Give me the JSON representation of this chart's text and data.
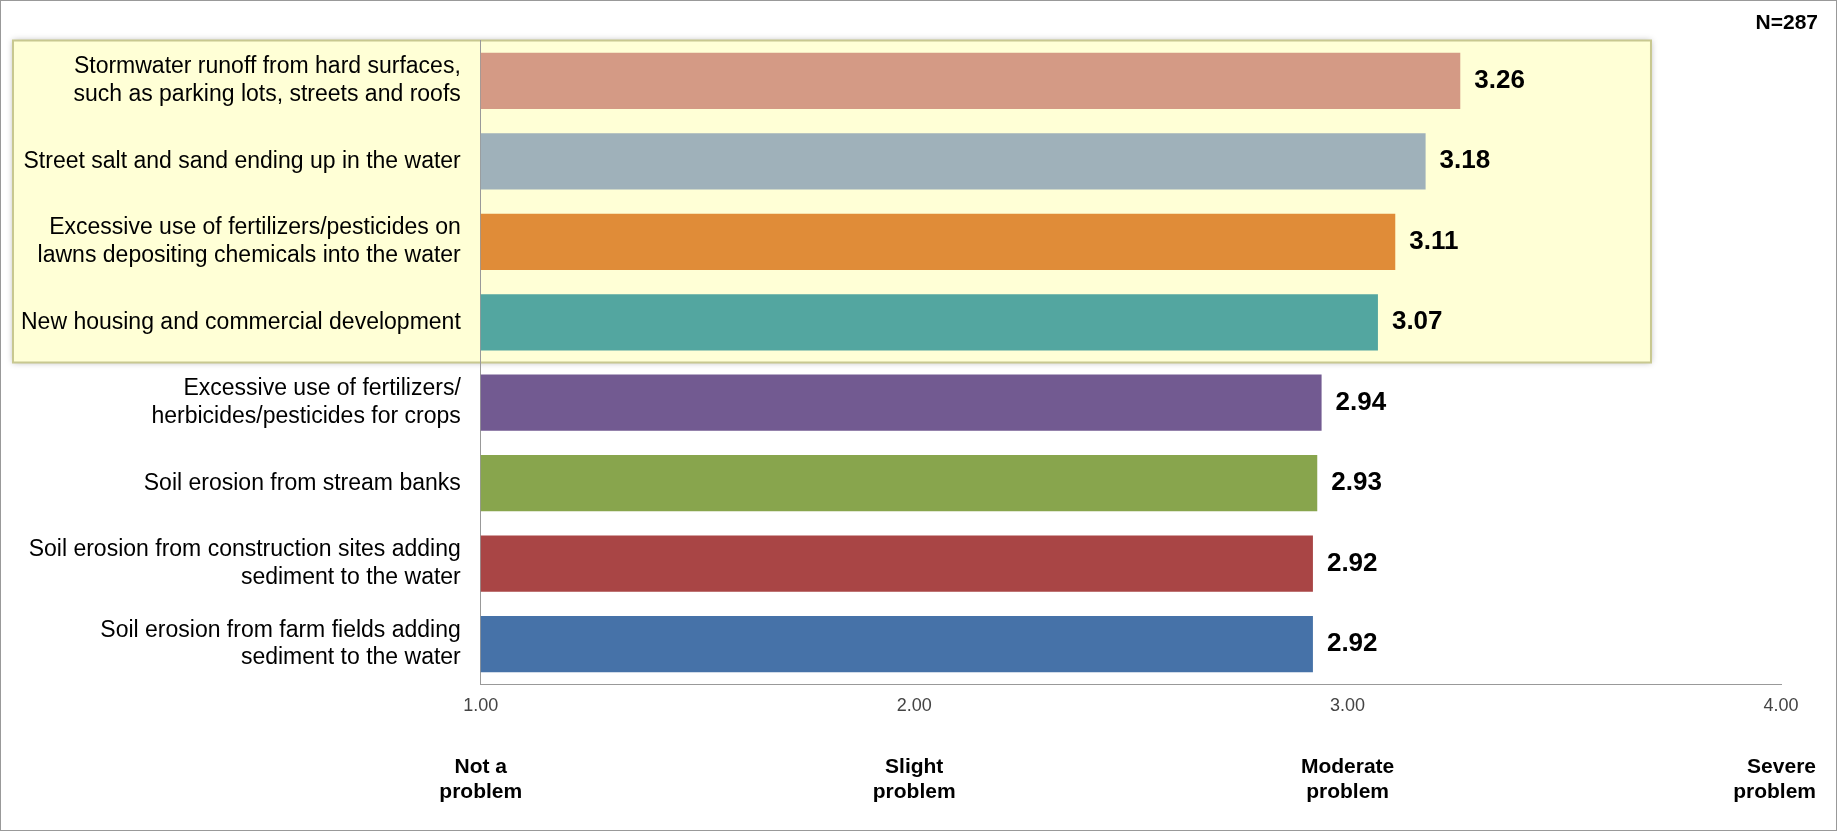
{
  "chart_data": {
    "type": "bar",
    "orientation": "horizontal",
    "categories": [
      "Stormwater runoff from hard surfaces, such as parking lots, streets and roofs",
      "Street salt and sand ending up in the water",
      "Excessive use of fertilizers/pesticides on lawns depositing chemicals into the water",
      "New housing and commercial development",
      "Excessive use of fertilizers/ herbicides/pesticides for crops",
      "Soil erosion from stream banks",
      "Soil erosion from construction sites adding sediment to the water",
      "Soil erosion from farm fields adding sediment to the water"
    ],
    "values": [
      3.26,
      3.18,
      3.11,
      3.07,
      2.94,
      2.93,
      2.92,
      2.92
    ],
    "colors": [
      "#d49a85",
      "#9fb1ba",
      "#e08c38",
      "#53a6a0",
      "#725a91",
      "#88a54d",
      "#a94545",
      "#4672a8"
    ],
    "xlim": [
      1,
      4
    ],
    "xticks": [
      {
        "value": 1,
        "label": "1.00"
      },
      {
        "value": 2,
        "label": "2.00"
      },
      {
        "value": 3,
        "label": "3.00"
      },
      {
        "value": 4,
        "label": "4.00"
      }
    ],
    "data_labels": true,
    "grid": false,
    "legend": false,
    "bands": [
      {
        "axis": "y",
        "from": "Stormwater runoff from hard surfaces, such as parking lots, streets and roofs",
        "to": "New housing and commercial development",
        "color": "#ffffd6"
      }
    ],
    "annotations": [
      "N=287",
      "Not a problem",
      "Slight problem",
      "Moderate problem",
      "Severe problem"
    ]
  }
}
